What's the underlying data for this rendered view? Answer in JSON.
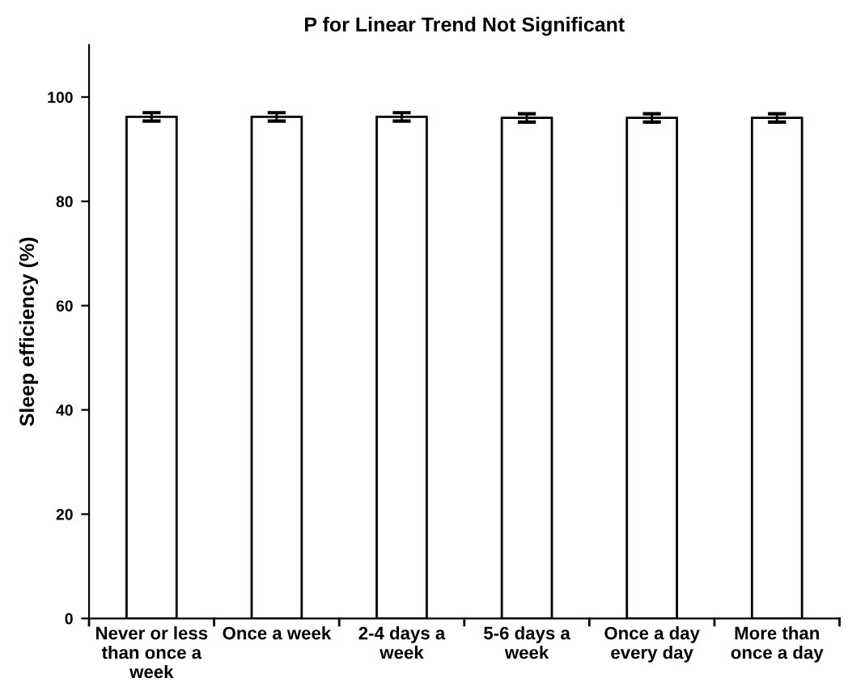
{
  "chart_data": {
    "type": "bar",
    "title": "P for Linear Trend Not Significant",
    "ylabel": "Sleep efficiency (%)",
    "categories": [
      "Never or less\nthan once a\nweek",
      "Once a week",
      "2-4 days a\nweek",
      "5-6 days a\nweek",
      "Once a day\nevery day",
      "More than\nonce a day"
    ],
    "series": [
      {
        "color": "#ffffff",
        "values": [
          96.2,
          96.2,
          96.2,
          96.0,
          96.0,
          96.0
        ],
        "errors": [
          0.8,
          0.8,
          0.8,
          0.8,
          0.8,
          0.8
        ]
      }
    ],
    "ylim": [
      0,
      110
    ],
    "yticks": [
      0,
      20,
      40,
      60,
      80,
      100
    ],
    "grid": false,
    "legend": false
  }
}
